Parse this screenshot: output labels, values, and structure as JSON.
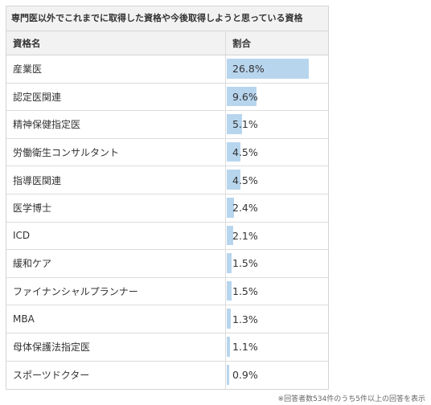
{
  "table": {
    "caption": "専門医以外でこれまでに取得した資格や今後取得しようと思っている資格",
    "header_name": "資格名",
    "header_share": "割合",
    "rows": [
      {
        "name": "産業医",
        "share_label": "26.8%",
        "share": 26.8
      },
      {
        "name": "認定医関連",
        "share_label": "9.6%",
        "share": 9.6
      },
      {
        "name": "精神保健指定医",
        "share_label": "5.1%",
        "share": 5.1
      },
      {
        "name": "労働衛生コンサルタント",
        "share_label": "4.5%",
        "share": 4.5
      },
      {
        "name": "指導医関連",
        "share_label": "4.5%",
        "share": 4.5
      },
      {
        "name": "医学博士",
        "share_label": "2.4%",
        "share": 2.4
      },
      {
        "name": "ICD",
        "share_label": "2.1%",
        "share": 2.1
      },
      {
        "name": "緩和ケア",
        "share_label": "1.5%",
        "share": 1.5
      },
      {
        "name": "ファイナンシャルプランナー",
        "share_label": "1.5%",
        "share": 1.5
      },
      {
        "name": "MBA",
        "share_label": "1.3%",
        "share": 1.3
      },
      {
        "name": "母体保護法指定医",
        "share_label": "1.1%",
        "share": 1.1
      },
      {
        "name": "スポーツドクター",
        "share_label": "0.9%",
        "share": 0.9
      }
    ]
  },
  "footnote": "※回答者数534件のうち5件以上の回答を表示",
  "colors": {
    "bar": "#b8d5ee",
    "header_bg": "#f2f2f2",
    "border": "#d4d4d4"
  }
}
